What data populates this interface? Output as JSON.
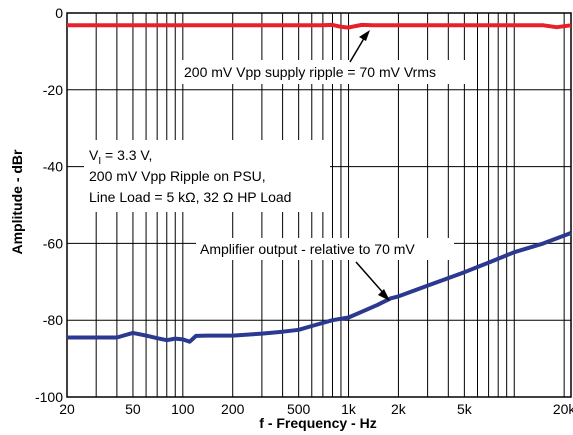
{
  "chart_data": {
    "type": "line",
    "xlabel": "f - Frequency - Hz",
    "ylabel": "Amplitude - dBr",
    "x_scale": "log",
    "xlim": [
      20,
      22000
    ],
    "ylim": [
      -100,
      0
    ],
    "grid": true,
    "x_ticks": [
      {
        "value": 20,
        "label": "20"
      },
      {
        "value": 50,
        "label": "50"
      },
      {
        "value": 100,
        "label": "100"
      },
      {
        "value": 200,
        "label": "200"
      },
      {
        "value": 500,
        "label": "500"
      },
      {
        "value": 1000,
        "label": "1k"
      },
      {
        "value": 2000,
        "label": "2k"
      },
      {
        "value": 5000,
        "label": "5k"
      },
      {
        "value": 20000,
        "label": "20k"
      }
    ],
    "y_ticks": [
      {
        "value": 0,
        "label": "0"
      },
      {
        "value": -20,
        "label": "-20"
      },
      {
        "value": -40,
        "label": "-40"
      },
      {
        "value": -60,
        "label": "-60"
      },
      {
        "value": -80,
        "label": "-80"
      },
      {
        "value": -100,
        "label": "-100"
      }
    ],
    "series": [
      {
        "color": "#e8202a",
        "x": [
          20,
          30,
          50,
          100,
          200,
          500,
          700,
          800,
          900,
          1000,
          1100,
          1200,
          1400,
          2000,
          5000,
          10000,
          15000,
          18000,
          22000
        ],
        "y": [
          -3.2,
          -3.2,
          -3.2,
          -3.2,
          -3.2,
          -3.2,
          -3.2,
          -3.1,
          -3.6,
          -3.8,
          -3.4,
          -3.1,
          -3.2,
          -3.2,
          -3.2,
          -3.2,
          -3.2,
          -3.7,
          -3.2
        ]
      },
      {
        "color": "#2b3990",
        "x": [
          20,
          25,
          30,
          40,
          50,
          60,
          70,
          80,
          90,
          100,
          110,
          120,
          140,
          200,
          300,
          400,
          500,
          600,
          800,
          1000,
          1200,
          1500,
          1800,
          2000,
          3000,
          5000,
          7000,
          10000,
          15000,
          22000
        ],
        "y": [
          -84.5,
          -84.5,
          -84.5,
          -84.5,
          -83.3,
          -84.0,
          -84.7,
          -85.2,
          -84.8,
          -85.0,
          -85.6,
          -84.1,
          -84.0,
          -84.0,
          -83.5,
          -83.0,
          -82.5,
          -81.5,
          -80.0,
          -79.3,
          -77.8,
          -76.0,
          -74.3,
          -73.8,
          -71.0,
          -67.5,
          -65.0,
          -62.3,
          -60.0,
          -57.3
        ]
      }
    ],
    "annotations": [
      "200 mV Vpp supply ripple = 70 mV Vrms",
      "Amplifier output - relative to 70 mV"
    ],
    "conditions": {
      "line1_prefix": "V",
      "line1_sub": "I",
      "line1_suffix": " = 3.3 V,",
      "line2": "200 mV Vpp Ripple on PSU,",
      "line3": "Line Load = 5 kΩ, 32 Ω HP Load"
    }
  }
}
